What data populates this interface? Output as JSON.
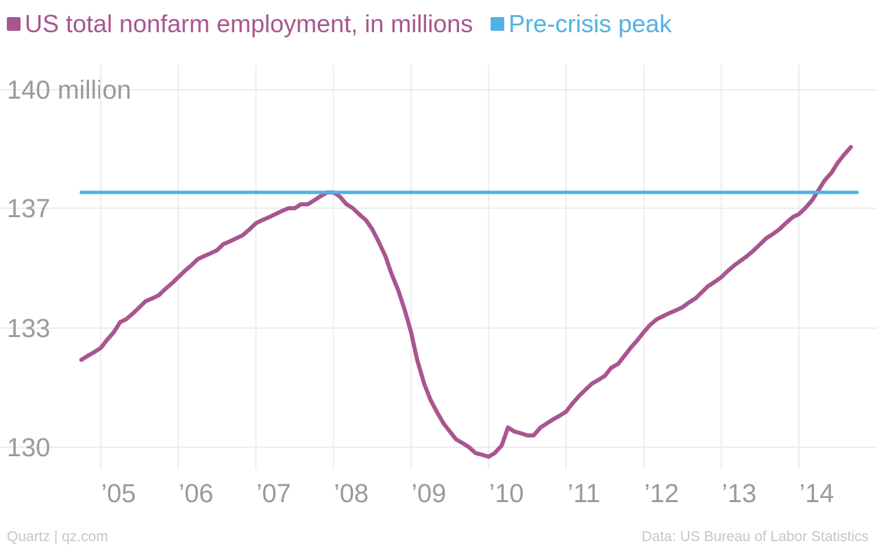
{
  "chart_data": {
    "type": "line",
    "title": "",
    "xlabel": "",
    "ylabel": "",
    "xlim": [
      2004.75,
      2014.75
    ],
    "ylim": [
      129.0,
      141.0
    ],
    "grid": true,
    "legend_placement": "top-left",
    "x_ticks": [
      {
        "value": 2005,
        "label": "’05"
      },
      {
        "value": 2006,
        "label": "’06"
      },
      {
        "value": 2007,
        "label": "’07"
      },
      {
        "value": 2008,
        "label": "’08"
      },
      {
        "value": 2009,
        "label": "’09"
      },
      {
        "value": 2010,
        "label": "’10"
      },
      {
        "value": 2011,
        "label": "’11"
      },
      {
        "value": 2012,
        "label": "’12"
      },
      {
        "value": 2013,
        "label": "’13"
      },
      {
        "value": 2014,
        "label": "’14"
      }
    ],
    "y_ticks": [
      {
        "value": 130,
        "label": "130"
      },
      {
        "value": 133,
        "label": "133"
      },
      {
        "value": 137,
        "label": "137"
      },
      {
        "value": 140,
        "label": "140 million"
      }
    ],
    "series": [
      {
        "name": "US total nonfarm employment, in millions",
        "color": "#a8568f",
        "points": [
          [
            2004.75,
            132.2
          ],
          [
            2004.83,
            132.3
          ],
          [
            2004.92,
            132.4
          ],
          [
            2005.0,
            132.5
          ],
          [
            2005.08,
            132.7
          ],
          [
            2005.17,
            132.9
          ],
          [
            2005.25,
            133.2
          ],
          [
            2005.33,
            133.3
          ],
          [
            2005.42,
            133.5
          ],
          [
            2005.5,
            133.7
          ],
          [
            2005.58,
            133.9
          ],
          [
            2005.67,
            134.0
          ],
          [
            2005.75,
            134.1
          ],
          [
            2005.83,
            134.3
          ],
          [
            2005.92,
            134.5
          ],
          [
            2006.0,
            134.7
          ],
          [
            2006.08,
            134.9
          ],
          [
            2006.17,
            135.1
          ],
          [
            2006.25,
            135.3
          ],
          [
            2006.33,
            135.4
          ],
          [
            2006.42,
            135.5
          ],
          [
            2006.5,
            135.6
          ],
          [
            2006.58,
            135.8
          ],
          [
            2006.67,
            135.9
          ],
          [
            2006.75,
            136.0
          ],
          [
            2006.83,
            136.1
          ],
          [
            2006.92,
            136.3
          ],
          [
            2007.0,
            136.5
          ],
          [
            2007.08,
            136.6
          ],
          [
            2007.17,
            136.7
          ],
          [
            2007.25,
            136.8
          ],
          [
            2007.33,
            136.9
          ],
          [
            2007.42,
            137.0
          ],
          [
            2007.5,
            137.0
          ],
          [
            2007.58,
            137.1
          ],
          [
            2007.67,
            137.1
          ],
          [
            2007.75,
            137.2
          ],
          [
            2007.83,
            137.3
          ],
          [
            2007.92,
            137.4
          ],
          [
            2008.0,
            137.4
          ],
          [
            2008.08,
            137.3
          ],
          [
            2008.17,
            137.1
          ],
          [
            2008.25,
            137.0
          ],
          [
            2008.33,
            136.8
          ],
          [
            2008.42,
            136.6
          ],
          [
            2008.5,
            136.3
          ],
          [
            2008.58,
            135.9
          ],
          [
            2008.67,
            135.4
          ],
          [
            2008.75,
            134.8
          ],
          [
            2008.83,
            134.3
          ],
          [
            2008.92,
            133.6
          ],
          [
            2009.0,
            132.9
          ],
          [
            2009.08,
            132.2
          ],
          [
            2009.17,
            131.6
          ],
          [
            2009.25,
            131.2
          ],
          [
            2009.33,
            130.9
          ],
          [
            2009.42,
            130.6
          ],
          [
            2009.5,
            130.4
          ],
          [
            2009.58,
            130.2
          ],
          [
            2009.67,
            130.1
          ],
          [
            2009.75,
            130.0
          ],
          [
            2009.83,
            129.85
          ],
          [
            2009.92,
            129.8
          ],
          [
            2010.0,
            129.75
          ],
          [
            2010.08,
            129.85
          ],
          [
            2010.17,
            130.05
          ],
          [
            2010.25,
            130.5
          ],
          [
            2010.33,
            130.4
          ],
          [
            2010.42,
            130.35
          ],
          [
            2010.5,
            130.3
          ],
          [
            2010.58,
            130.3
          ],
          [
            2010.67,
            130.5
          ],
          [
            2010.75,
            130.6
          ],
          [
            2010.83,
            130.7
          ],
          [
            2010.92,
            130.8
          ],
          [
            2011.0,
            130.9
          ],
          [
            2011.08,
            131.1
          ],
          [
            2011.17,
            131.3
          ],
          [
            2011.25,
            131.45
          ],
          [
            2011.33,
            131.6
          ],
          [
            2011.42,
            131.7
          ],
          [
            2011.5,
            131.8
          ],
          [
            2011.58,
            132.0
          ],
          [
            2011.67,
            132.1
          ],
          [
            2011.75,
            132.3
          ],
          [
            2011.83,
            132.5
          ],
          [
            2011.92,
            132.7
          ],
          [
            2012.0,
            132.9
          ],
          [
            2012.08,
            133.1
          ],
          [
            2012.17,
            133.3
          ],
          [
            2012.25,
            133.4
          ],
          [
            2012.33,
            133.5
          ],
          [
            2012.42,
            133.6
          ],
          [
            2012.5,
            133.7
          ],
          [
            2012.58,
            133.85
          ],
          [
            2012.67,
            134.0
          ],
          [
            2012.75,
            134.2
          ],
          [
            2012.83,
            134.4
          ],
          [
            2012.92,
            134.55
          ],
          [
            2013.0,
            134.7
          ],
          [
            2013.08,
            134.9
          ],
          [
            2013.17,
            135.1
          ],
          [
            2013.25,
            135.25
          ],
          [
            2013.33,
            135.4
          ],
          [
            2013.42,
            135.6
          ],
          [
            2013.5,
            135.8
          ],
          [
            2013.58,
            136.0
          ],
          [
            2013.67,
            136.15
          ],
          [
            2013.75,
            136.3
          ],
          [
            2013.83,
            136.5
          ],
          [
            2013.92,
            136.7
          ],
          [
            2014.0,
            136.8
          ],
          [
            2014.08,
            137.0
          ],
          [
            2014.17,
            137.2
          ],
          [
            2014.25,
            137.45
          ],
          [
            2014.33,
            137.7
          ],
          [
            2014.42,
            137.9
          ],
          [
            2014.5,
            138.15
          ],
          [
            2014.58,
            138.35
          ],
          [
            2014.67,
            138.55
          ]
        ]
      },
      {
        "name": "Pre-crisis peak",
        "color": "#51b2e5",
        "points": [
          [
            2004.75,
            137.4
          ],
          [
            2014.75,
            137.4
          ]
        ]
      }
    ]
  },
  "footer": {
    "left": "Quartz | qz.com",
    "right": "Data: US Bureau of Labor Statistics"
  }
}
